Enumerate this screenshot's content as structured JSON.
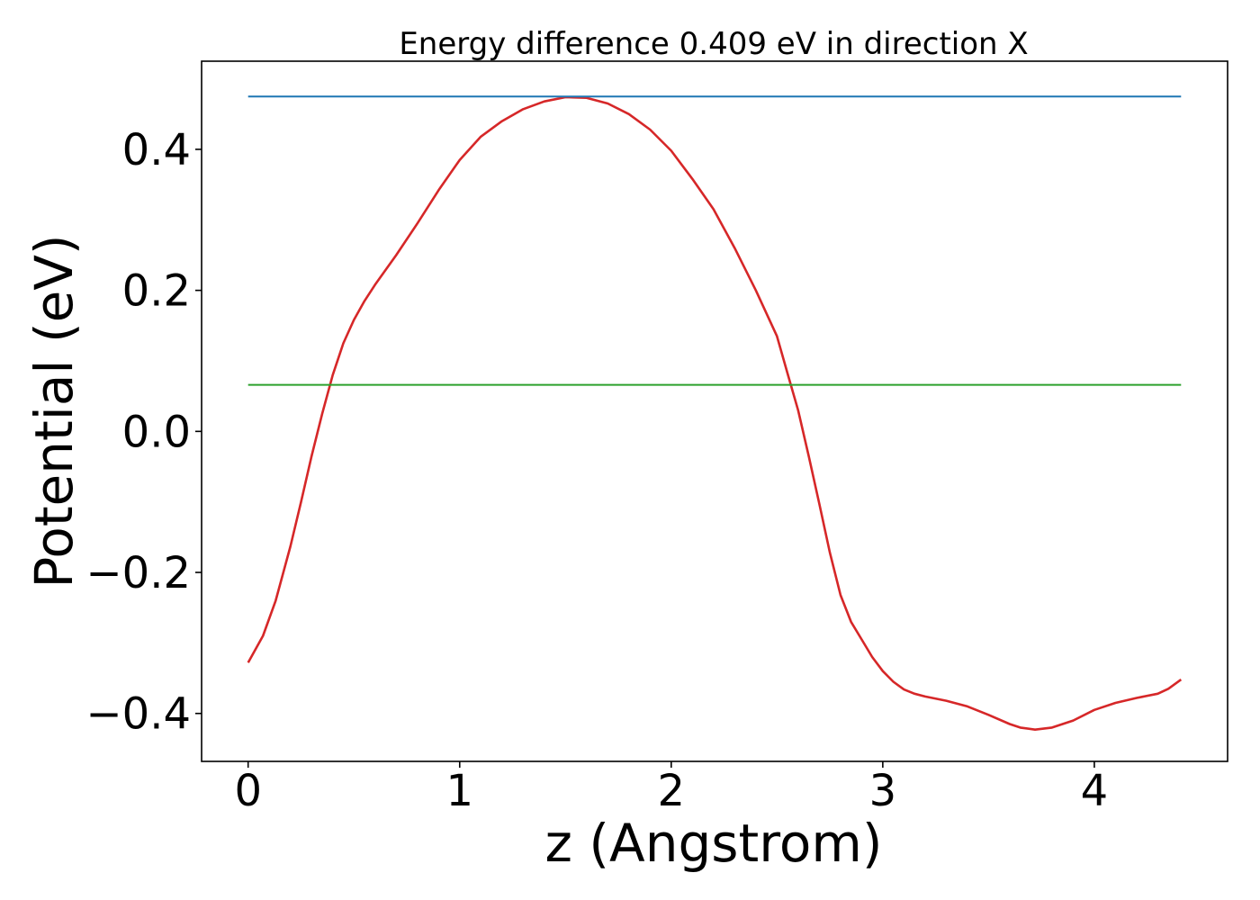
{
  "chart_data": {
    "type": "line",
    "title": "Energy difference 0.409 eV in direction X",
    "xlabel": "z (Angstrom)",
    "ylabel": "Potential (eV)",
    "xlim": [
      -0.22,
      4.63
    ],
    "ylim": [
      -0.468,
      0.525
    ],
    "xticks": [
      0,
      1,
      2,
      3,
      4
    ],
    "xtick_labels": [
      "0",
      "1",
      "2",
      "3",
      "4"
    ],
    "yticks": [
      -0.4,
      -0.2,
      0.0,
      0.2,
      0.4
    ],
    "ytick_labels": [
      "−0.4",
      "−0.2",
      "0.0",
      "0.2",
      "0.4"
    ],
    "grid": false,
    "series": [
      {
        "color": "#d62728",
        "x": [
          0.0,
          0.07,
          0.13,
          0.2,
          0.25,
          0.3,
          0.35,
          0.4,
          0.45,
          0.5,
          0.55,
          0.6,
          0.7,
          0.8,
          0.9,
          1.0,
          1.1,
          1.2,
          1.3,
          1.4,
          1.5,
          1.6,
          1.7,
          1.8,
          1.9,
          2.0,
          2.1,
          2.2,
          2.3,
          2.4,
          2.5,
          2.55,
          2.6,
          2.65,
          2.7,
          2.75,
          2.8,
          2.85,
          2.9,
          2.95,
          3.0,
          3.05,
          3.1,
          3.15,
          3.2,
          3.3,
          3.4,
          3.5,
          3.6,
          3.65,
          3.72,
          3.8,
          3.9,
          4.0,
          4.1,
          4.2,
          4.3,
          4.35,
          4.41
        ],
        "y": [
          -0.328,
          -0.29,
          -0.24,
          -0.163,
          -0.1,
          -0.035,
          0.025,
          0.08,
          0.125,
          0.158,
          0.185,
          0.208,
          0.25,
          0.295,
          0.342,
          0.385,
          0.418,
          0.44,
          0.457,
          0.468,
          0.474,
          0.473,
          0.465,
          0.45,
          0.428,
          0.398,
          0.358,
          0.315,
          0.26,
          0.2,
          0.135,
          0.082,
          0.03,
          -0.035,
          -0.103,
          -0.172,
          -0.232,
          -0.27,
          -0.295,
          -0.32,
          -0.34,
          -0.355,
          -0.366,
          -0.372,
          -0.376,
          -0.382,
          -0.39,
          -0.402,
          -0.415,
          -0.42,
          -0.423,
          -0.42,
          -0.41,
          -0.395,
          -0.385,
          -0.378,
          -0.372,
          -0.365,
          -0.352
        ]
      },
      {
        "color": "#1f77b4",
        "x": [
          0.0,
          4.41
        ],
        "y": [
          0.475,
          0.475
        ]
      },
      {
        "color": "#2ca02c",
        "x": [
          0.0,
          4.41
        ],
        "y": [
          0.066,
          0.066
        ]
      }
    ]
  }
}
